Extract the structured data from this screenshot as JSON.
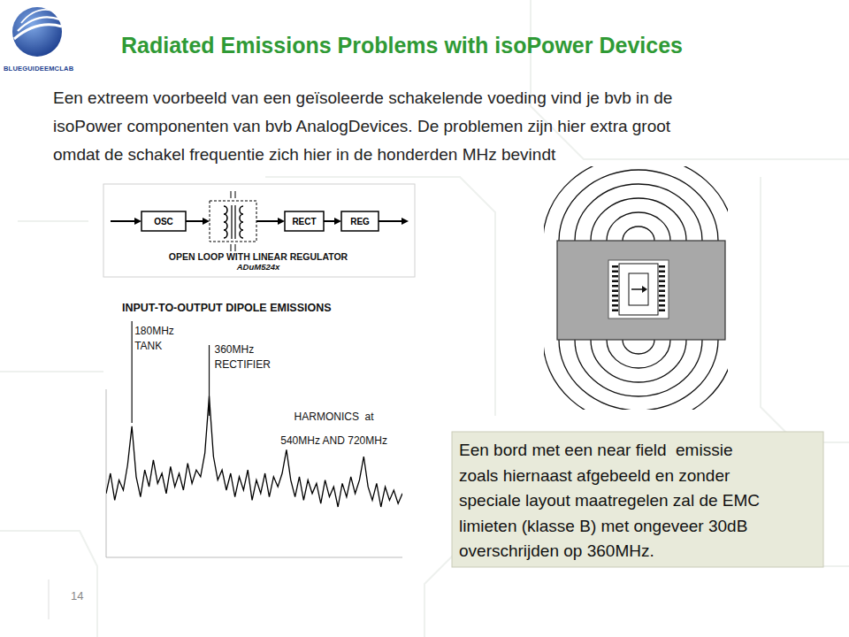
{
  "slide": {
    "logo": {
      "text": "BLUEGUIDEEMCLAB"
    },
    "title": "Radiated Emissions Problems with isoPower Devices",
    "body": {
      "lines": [
        "Een extreem voorbeeld van een geïsoleerde schakelende voeding vind je bvb in de",
        "isoPower componenten van bvb AnalogDevices. De problemen zijn hier extra groot",
        "omdat de schakel frequentie zich hier in de honderden MHz bevindt"
      ]
    },
    "block_diagram": {
      "blocks": [
        "OSC",
        "RECT",
        "REG"
      ],
      "caption": "OPEN LOOP WITH LINEAR REGULATOR",
      "subcaption": "ADuM524x"
    },
    "note": {
      "lines": [
        "Een bord met een near field  emissie",
        "zoals hiernaast afgebeeld en zonder",
        "speciale layout maatregelen zal de EMC",
        "limieten (klasse B) met ongeveer 30dB",
        "overschrijden op 360MHz."
      ]
    },
    "page_number": 14
  },
  "chart_data": {
    "type": "line",
    "title": "INPUT-TO-OUTPUT DIPOLE EMISSIONS",
    "x": [
      120,
      130,
      140,
      150,
      160,
      170,
      180,
      190,
      200,
      210,
      220,
      230,
      240,
      250,
      260,
      270,
      280,
      290,
      300,
      310,
      320,
      330,
      340,
      350,
      360,
      370,
      380,
      390,
      400,
      410,
      420,
      430,
      440,
      450,
      460,
      470,
      480,
      490,
      500,
      510,
      520,
      530,
      540,
      550,
      560,
      570,
      580,
      590,
      600,
      610,
      620,
      630,
      640,
      650,
      660,
      670,
      680,
      690,
      700,
      710,
      720,
      730,
      740,
      750,
      760,
      770,
      780,
      790,
      800,
      810
    ],
    "values": [
      38,
      50,
      34,
      46,
      40,
      55,
      78,
      48,
      36,
      52,
      42,
      58,
      44,
      50,
      38,
      54,
      42,
      50,
      40,
      56,
      44,
      52,
      48,
      62,
      96,
      60,
      46,
      52,
      40,
      50,
      36,
      48,
      40,
      52,
      34,
      46,
      38,
      50,
      36,
      48,
      42,
      50,
      64,
      46,
      36,
      48,
      34,
      46,
      38,
      44,
      32,
      46,
      36,
      42,
      30,
      44,
      36,
      48,
      38,
      46,
      60,
      42,
      34,
      44,
      30,
      42,
      34,
      40,
      32,
      38
    ],
    "xlim": [
      120,
      810
    ],
    "ylim": [
      0,
      100
    ],
    "tick_labels": false,
    "color": "#000000",
    "annotations": [
      {
        "text": "180MHz\nTANK",
        "x": 180
      },
      {
        "text": "360MHz\nRECTIFIER",
        "x": 360
      },
      {
        "text": "HARMONICS  at\n540MHz AND 720MHz",
        "x": [
          540,
          720
        ]
      }
    ]
  }
}
